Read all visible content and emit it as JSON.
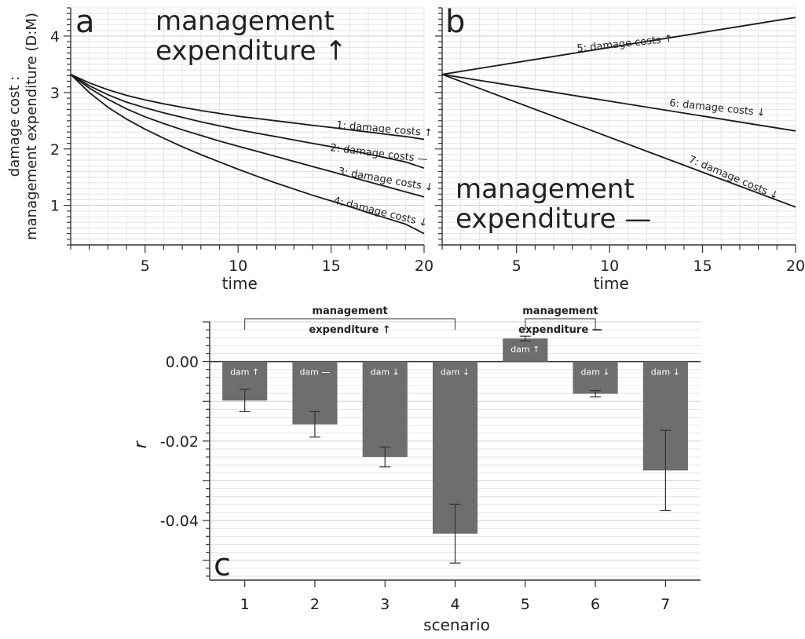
{
  "chart_data": [
    {
      "type": "line",
      "panel": "a",
      "annotation": [
        "management",
        "expenditure ↑"
      ],
      "xlabel": "time",
      "ylabel": [
        "damage cost :",
        "management expenditure (D:M)"
      ],
      "xlim": [
        1,
        20
      ],
      "ylim": [
        0.3,
        4.5
      ],
      "xticks": [
        5,
        10,
        15,
        20
      ],
      "yticks": [
        1,
        2,
        3,
        4
      ],
      "grid": true,
      "series": [
        {
          "name": "1: damage costs ↑",
          "x": [
            1,
            2,
            3,
            4,
            5,
            6,
            7,
            8,
            9,
            10,
            11,
            12,
            13,
            14,
            15,
            16,
            17,
            18,
            19,
            20
          ],
          "y": [
            3.32,
            3.17,
            3.05,
            2.95,
            2.87,
            2.8,
            2.74,
            2.68,
            2.63,
            2.58,
            2.54,
            2.5,
            2.46,
            2.42,
            2.38,
            2.34,
            2.3,
            2.26,
            2.22,
            2.17
          ]
        },
        {
          "name": "2: damage costs —",
          "x": [
            1,
            2,
            3,
            4,
            5,
            6,
            7,
            8,
            9,
            10,
            11,
            12,
            13,
            14,
            15,
            16,
            17,
            18,
            19,
            20
          ],
          "y": [
            3.32,
            3.12,
            2.96,
            2.83,
            2.73,
            2.64,
            2.56,
            2.48,
            2.41,
            2.34,
            2.28,
            2.22,
            2.16,
            2.1,
            2.04,
            1.98,
            1.91,
            1.84,
            1.77,
            1.66
          ]
        },
        {
          "name": "3: damage costs ↓",
          "x": [
            1,
            2,
            3,
            4,
            5,
            6,
            7,
            8,
            9,
            10,
            11,
            12,
            13,
            14,
            15,
            16,
            17,
            18,
            19,
            20
          ],
          "y": [
            3.32,
            3.08,
            2.88,
            2.71,
            2.57,
            2.45,
            2.34,
            2.24,
            2.14,
            2.05,
            1.96,
            1.87,
            1.78,
            1.69,
            1.6,
            1.51,
            1.42,
            1.33,
            1.24,
            1.15
          ]
        },
        {
          "name": "4: damage costs ↓",
          "x": [
            1,
            2,
            3,
            4,
            5,
            6,
            7,
            8,
            9,
            10,
            11,
            12,
            13,
            14,
            15,
            16,
            17,
            18,
            19,
            20
          ],
          "y": [
            3.32,
            3.0,
            2.74,
            2.53,
            2.35,
            2.19,
            2.04,
            1.9,
            1.77,
            1.64,
            1.52,
            1.4,
            1.29,
            1.18,
            1.08,
            0.98,
            0.87,
            0.77,
            0.67,
            0.5
          ]
        }
      ]
    },
    {
      "type": "line",
      "panel": "b",
      "annotation": [
        "management",
        "expenditure —"
      ],
      "xlabel": "time",
      "xlim": [
        1,
        20
      ],
      "ylim": [
        0.3,
        4.5
      ],
      "xticks": [
        5,
        10,
        15,
        20
      ],
      "grid": true,
      "series": [
        {
          "name": "5: damage costs ↑",
          "x": [
            1,
            20
          ],
          "y": [
            3.32,
            4.33
          ]
        },
        {
          "name": "6: damage costs ↓",
          "x": [
            1,
            20
          ],
          "y": [
            3.32,
            2.32
          ]
        },
        {
          "name": "7: damage costs ↓",
          "x": [
            1,
            20
          ],
          "y": [
            3.32,
            0.97
          ]
        }
      ]
    },
    {
      "type": "bar",
      "panel": "c",
      "xlabel": "scenario",
      "ylabel": "r",
      "categories": [
        "1",
        "2",
        "3",
        "4",
        "5",
        "6",
        "7"
      ],
      "values": [
        -0.0098,
        -0.0158,
        -0.024,
        -0.0433,
        0.0058,
        -0.0081,
        -0.0274
      ],
      "error_low": [
        -0.0126,
        -0.019,
        -0.0265,
        -0.0507,
        0.0052,
        -0.0089,
        -0.0375
      ],
      "error_high": [
        -0.007,
        -0.0126,
        -0.0215,
        -0.0359,
        0.0064,
        -0.0073,
        -0.0173
      ],
      "bar_labels": [
        "dam ↑",
        "dam —",
        "dam ↓",
        "dam ↓",
        "dam ↑",
        "dam ↓",
        "dam ↓"
      ],
      "ylim": [
        -0.055,
        0.01
      ],
      "yticks": [
        "0.00",
        "-0.02",
        "-0.04"
      ],
      "ytick_values": [
        0,
        -0.02,
        -0.04
      ],
      "grid": true,
      "groups": [
        {
          "label": [
            "management",
            "expenditure ↑"
          ],
          "from": 1,
          "to": 4
        },
        {
          "label": [
            "management",
            "expenditure —"
          ],
          "from": 5,
          "to": 6
        }
      ]
    }
  ]
}
